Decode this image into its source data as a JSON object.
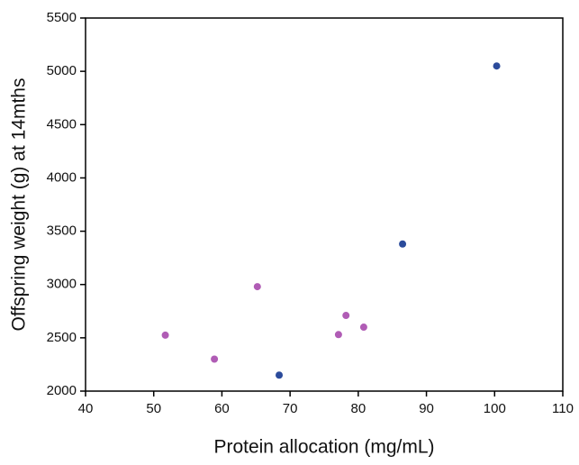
{
  "chart_data": {
    "type": "scatter",
    "x_label": "Protein allocation (mg/mL)",
    "y_label": "Offspring weight (g) at 14mths",
    "xlim": [
      40,
      110
    ],
    "xticks": [
      40,
      50,
      60,
      70,
      80,
      90,
      100,
      110
    ],
    "ylim": [
      2000,
      5500
    ],
    "yticks": [
      2000,
      2500,
      3000,
      3500,
      4000,
      4500,
      5000,
      5500
    ],
    "grid": false,
    "series": [
      {
        "color": "#2b4b9b",
        "x": [
          68.4,
          86.5,
          100.3
        ],
        "values": [
          2150,
          3380,
          5050
        ]
      },
      {
        "color": "#b05cb5",
        "x": [
          51.7,
          58.9,
          65.2,
          77.1,
          78.2,
          80.8
        ],
        "values": [
          2525,
          2300,
          2980,
          2530,
          2710,
          2600
        ]
      }
    ]
  }
}
